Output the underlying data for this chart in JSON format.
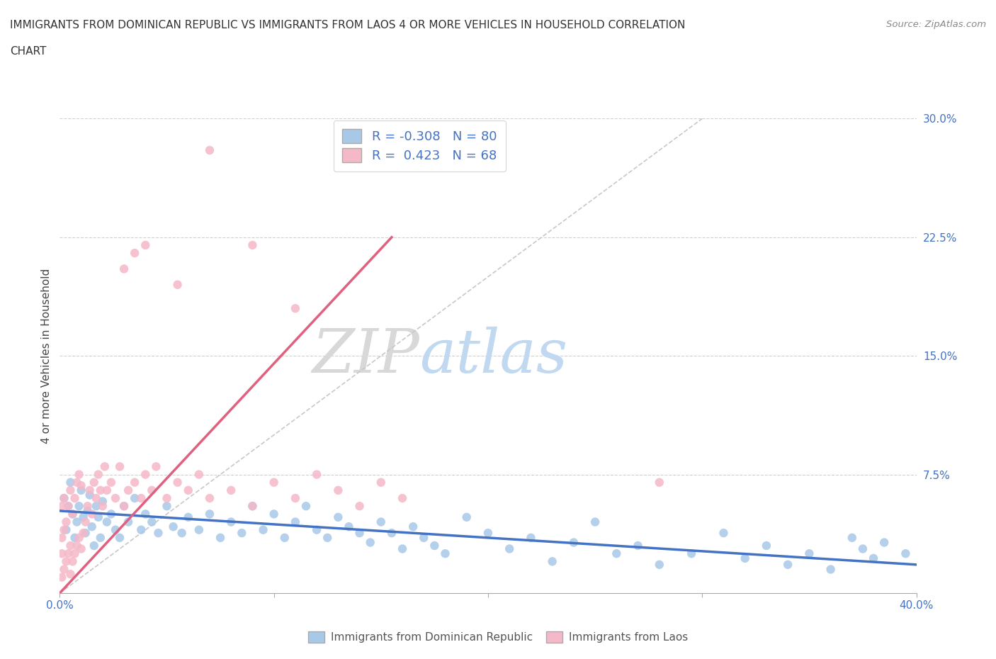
{
  "title_line1": "IMMIGRANTS FROM DOMINICAN REPUBLIC VS IMMIGRANTS FROM LAOS 4 OR MORE VEHICLES IN HOUSEHOLD CORRELATION",
  "title_line2": "CHART",
  "source": "Source: ZipAtlas.com",
  "ylabel": "4 or more Vehicles in Household",
  "xlabel_blue": "Immigrants from Dominican Republic",
  "xlabel_pink": "Immigrants from Laos",
  "xlim": [
    0.0,
    0.4
  ],
  "ylim": [
    0.0,
    0.3
  ],
  "blue_R": -0.308,
  "blue_N": 80,
  "pink_R": 0.423,
  "pink_N": 68,
  "blue_color": "#a8c8e8",
  "pink_color": "#f5b8c8",
  "blue_line_color": "#4472c4",
  "pink_line_color": "#e06080",
  "diagonal_color": "#c8c8c8",
  "watermark_zip": "ZIP",
  "watermark_atlas": "atlas",
  "blue_trend_x": [
    0.0,
    0.4
  ],
  "blue_trend_y": [
    0.052,
    0.018
  ],
  "pink_trend_x": [
    0.0,
    0.155
  ],
  "pink_trend_y": [
    0.0,
    0.225
  ],
  "blue_x": [
    0.002,
    0.003,
    0.004,
    0.005,
    0.006,
    0.007,
    0.008,
    0.009,
    0.01,
    0.011,
    0.012,
    0.013,
    0.014,
    0.015,
    0.016,
    0.017,
    0.018,
    0.019,
    0.02,
    0.022,
    0.024,
    0.026,
    0.028,
    0.03,
    0.032,
    0.035,
    0.038,
    0.04,
    0.043,
    0.046,
    0.05,
    0.053,
    0.057,
    0.06,
    0.065,
    0.07,
    0.075,
    0.08,
    0.085,
    0.09,
    0.095,
    0.1,
    0.105,
    0.11,
    0.115,
    0.12,
    0.125,
    0.13,
    0.135,
    0.14,
    0.145,
    0.15,
    0.155,
    0.16,
    0.165,
    0.17,
    0.175,
    0.18,
    0.19,
    0.2,
    0.21,
    0.22,
    0.23,
    0.24,
    0.25,
    0.26,
    0.27,
    0.28,
    0.295,
    0.31,
    0.32,
    0.33,
    0.34,
    0.35,
    0.36,
    0.37,
    0.375,
    0.38,
    0.385,
    0.395
  ],
  "blue_y": [
    0.06,
    0.04,
    0.055,
    0.07,
    0.05,
    0.035,
    0.045,
    0.055,
    0.065,
    0.048,
    0.038,
    0.052,
    0.062,
    0.042,
    0.03,
    0.055,
    0.048,
    0.035,
    0.058,
    0.045,
    0.05,
    0.04,
    0.035,
    0.055,
    0.045,
    0.06,
    0.04,
    0.05,
    0.045,
    0.038,
    0.055,
    0.042,
    0.038,
    0.048,
    0.04,
    0.05,
    0.035,
    0.045,
    0.038,
    0.055,
    0.04,
    0.05,
    0.035,
    0.045,
    0.055,
    0.04,
    0.035,
    0.048,
    0.042,
    0.038,
    0.032,
    0.045,
    0.038,
    0.028,
    0.042,
    0.035,
    0.03,
    0.025,
    0.048,
    0.038,
    0.028,
    0.035,
    0.02,
    0.032,
    0.045,
    0.025,
    0.03,
    0.018,
    0.025,
    0.038,
    0.022,
    0.03,
    0.018,
    0.025,
    0.015,
    0.035,
    0.028,
    0.022,
    0.032,
    0.025
  ],
  "pink_x": [
    0.001,
    0.001,
    0.001,
    0.001,
    0.002,
    0.002,
    0.002,
    0.003,
    0.003,
    0.004,
    0.004,
    0.005,
    0.005,
    0.005,
    0.006,
    0.006,
    0.007,
    0.007,
    0.008,
    0.008,
    0.009,
    0.009,
    0.01,
    0.01,
    0.011,
    0.012,
    0.013,
    0.014,
    0.015,
    0.016,
    0.017,
    0.018,
    0.019,
    0.02,
    0.021,
    0.022,
    0.024,
    0.026,
    0.028,
    0.03,
    0.032,
    0.035,
    0.038,
    0.04,
    0.043,
    0.045,
    0.05,
    0.055,
    0.06,
    0.065,
    0.07,
    0.08,
    0.09,
    0.1,
    0.11,
    0.12,
    0.13,
    0.14,
    0.15,
    0.16,
    0.03,
    0.035,
    0.04,
    0.055,
    0.07,
    0.09,
    0.11,
    0.28
  ],
  "pink_y": [
    0.01,
    0.025,
    0.035,
    0.055,
    0.015,
    0.04,
    0.06,
    0.02,
    0.045,
    0.025,
    0.055,
    0.012,
    0.03,
    0.065,
    0.02,
    0.05,
    0.025,
    0.06,
    0.03,
    0.07,
    0.035,
    0.075,
    0.028,
    0.068,
    0.038,
    0.045,
    0.055,
    0.065,
    0.05,
    0.07,
    0.06,
    0.075,
    0.065,
    0.055,
    0.08,
    0.065,
    0.07,
    0.06,
    0.08,
    0.055,
    0.065,
    0.07,
    0.06,
    0.075,
    0.065,
    0.08,
    0.06,
    0.07,
    0.065,
    0.075,
    0.06,
    0.065,
    0.055,
    0.07,
    0.06,
    0.075,
    0.065,
    0.055,
    0.07,
    0.06,
    0.205,
    0.215,
    0.22,
    0.195,
    0.28,
    0.22,
    0.18,
    0.07
  ]
}
